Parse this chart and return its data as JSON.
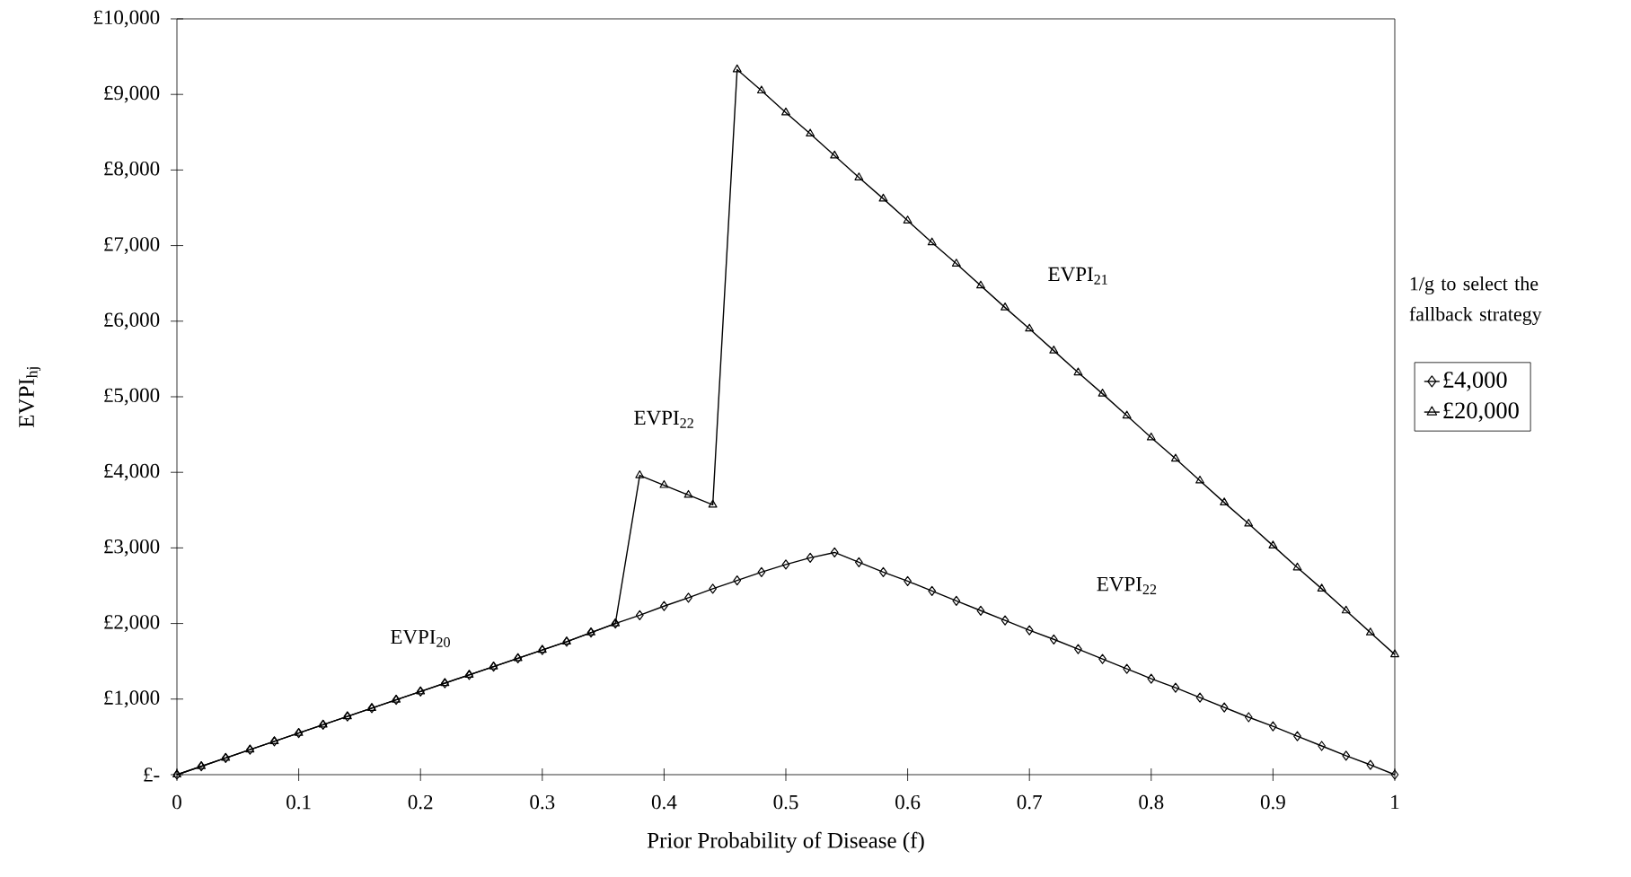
{
  "chart_data": {
    "type": "line",
    "xlabel": "Prior Probability of Disease (f)",
    "ylabel": "EVPI$_{hj}$",
    "legend_title": "1/g to select  the fallback strategy",
    "legend": "right",
    "line_style": "solid",
    "grid": false,
    "x": [
      0,
      0.02,
      0.04,
      0.06,
      0.08,
      0.1,
      0.12,
      0.14,
      0.16,
      0.18,
      0.2,
      0.22,
      0.24,
      0.26,
      0.28,
      0.3,
      0.32,
      0.34,
      0.36,
      0.38,
      0.4,
      0.42,
      0.44,
      0.46,
      0.48,
      0.5,
      0.52,
      0.54,
      0.56,
      0.58,
      0.6,
      0.62,
      0.64,
      0.66,
      0.68,
      0.7,
      0.72,
      0.74,
      0.76,
      0.78,
      0.8,
      0.82,
      0.84,
      0.86,
      0.88,
      0.9,
      0.92,
      0.94,
      0.96,
      0.98,
      1
    ],
    "series": [
      {
        "name": "£4,000",
        "color": "#000000",
        "marker": "diamond",
        "values": [
          0,
          110,
          220,
          330,
          440,
          550,
          660,
          770,
          880,
          990,
          1100,
          1210,
          1320,
          1430,
          1540,
          1650,
          1760,
          1880,
          2000,
          2110,
          2230,
          2340,
          2460,
          2570,
          2680,
          2780,
          2870,
          2940,
          2810,
          2680,
          2560,
          2430,
          2300,
          2170,
          2040,
          1910,
          1790,
          1660,
          1530,
          1400,
          1270,
          1150,
          1020,
          890,
          760,
          640,
          510,
          380,
          250,
          130,
          0
        ]
      },
      {
        "name": "£20,000",
        "color": "#000000",
        "marker": "triangle",
        "values": [
          0,
          110,
          220,
          330,
          440,
          550,
          660,
          770,
          880,
          990,
          1100,
          1210,
          1320,
          1430,
          1540,
          1650,
          1760,
          1880,
          2000,
          3960,
          3830,
          3700,
          3570,
          9330,
          9050,
          8760,
          8480,
          8190,
          7900,
          7620,
          7330,
          7040,
          6760,
          6470,
          6180,
          5900,
          5610,
          5320,
          5040,
          4750,
          4460,
          4180,
          3890,
          3600,
          3320,
          3030,
          2740,
          2460,
          2170,
          1880,
          1590
        ]
      }
    ],
    "xlim": [
      0,
      1
    ],
    "xticks": [
      0,
      0.1,
      0.2,
      0.3,
      0.4,
      0.5,
      0.6,
      0.7,
      0.8,
      0.9,
      1
    ],
    "ylim": [
      0,
      10000
    ],
    "yticks": [
      {
        "value": 0,
        "label": "£-"
      },
      {
        "value": 1000,
        "label": "£1,000"
      },
      {
        "value": 2000,
        "label": "£2,000"
      },
      {
        "value": 3000,
        "label": "£3,000"
      },
      {
        "value": 4000,
        "label": "£4,000"
      },
      {
        "value": 5000,
        "label": "£5,000"
      },
      {
        "value": 6000,
        "label": "£6,000"
      },
      {
        "value": 7000,
        "label": "£7,000"
      },
      {
        "value": 8000,
        "label": "£8,000"
      },
      {
        "value": 9000,
        "label": "£9,000"
      },
      {
        "value": 10000,
        "label": "£10,000"
      }
    ],
    "annotations": [
      "EVPI$_{20}$",
      "EVPI$_{22}$",
      "EVPI$_{21}$",
      "EVPI$_{22}$"
    ]
  }
}
